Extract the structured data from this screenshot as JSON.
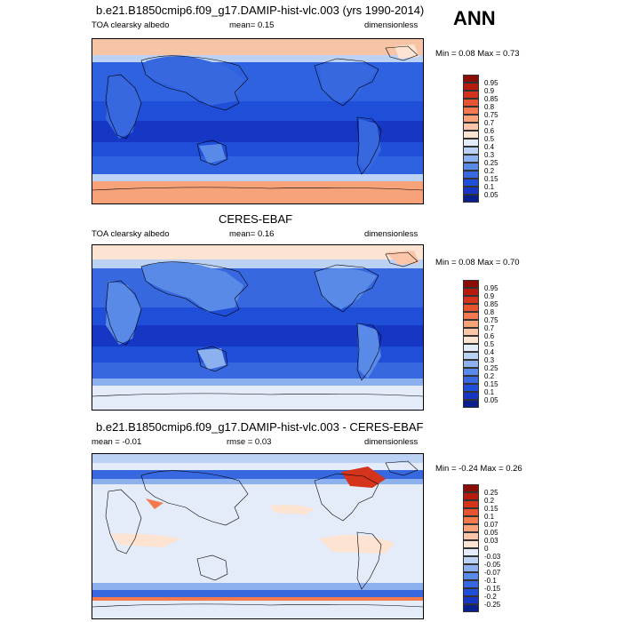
{
  "header": {
    "ann_label": "ANN"
  },
  "panels": [
    {
      "title": "b.e21.B1850cmip6.f09_g17.DAMIP-hist-vlc.003 (yrs 1990-2014)",
      "variable": "TOA clearsky albedo",
      "stat1": "mean=   0.15",
      "stat2": "",
      "units": "dimensionless",
      "minmax": "Min =   0.08 Max =   0.73",
      "colorbar_labels": [
        "0.95",
        "0.9",
        "0.85",
        "0.8",
        "0.75",
        "0.7",
        "0.6",
        "0.5",
        "0.4",
        "0.3",
        "0.25",
        "0.2",
        "0.15",
        "0.1",
        "0.05"
      ],
      "colorbar_colors": [
        "#8b0d06",
        "#b51c0e",
        "#d4341c",
        "#e65530",
        "#f47a4e",
        "#f8a27a",
        "#fac5a8",
        "#fde3d2",
        "#e4ecfa",
        "#bcd2f5",
        "#8db1ef",
        "#5a8ae8",
        "#3768e0",
        "#1f4fd9",
        "#1537c4",
        "#0a1f8a"
      ]
    },
    {
      "title": "CERES-EBAF",
      "variable": "TOA clearsky albedo",
      "stat1": "mean=   0.16",
      "stat2": "",
      "units": "dimensionless",
      "minmax": "Min =   0.08 Max =   0.70",
      "colorbar_labels": [
        "0.95",
        "0.9",
        "0.85",
        "0.8",
        "0.75",
        "0.7",
        "0.6",
        "0.5",
        "0.4",
        "0.3",
        "0.25",
        "0.2",
        "0.15",
        "0.1",
        "0.05"
      ],
      "colorbar_colors": [
        "#8b0d06",
        "#b51c0e",
        "#d4341c",
        "#e65530",
        "#f47a4e",
        "#f8a27a",
        "#fac5a8",
        "#fde3d2",
        "#e4ecfa",
        "#bcd2f5",
        "#8db1ef",
        "#5a8ae8",
        "#3768e0",
        "#1f4fd9",
        "#1537c4",
        "#0a1f8a"
      ]
    },
    {
      "title": "b.e21.B1850cmip6.f09_g17.DAMIP-hist-vlc.003 - CERES-EBAF",
      "variable": "",
      "stat1": "mean =  -0.01",
      "stat2": "rmse =   0.03",
      "units": "dimensionless",
      "minmax": "Min =  -0.24 Max =   0.26",
      "colorbar_labels": [
        "0.25",
        "0.2",
        "0.15",
        "0.1",
        "0.07",
        "0.05",
        "0.03",
        "0",
        "-0.03",
        "-0.05",
        "-0.07",
        "-0.1",
        "-0.15",
        "-0.2",
        "-0.25"
      ],
      "colorbar_colors": [
        "#8b0d06",
        "#b51c0e",
        "#d4341c",
        "#e65530",
        "#f47a4e",
        "#f8a27a",
        "#fac5a8",
        "#fde3d2",
        "#e4ecfa",
        "#bcd2f5",
        "#8db1ef",
        "#5a8ae8",
        "#3768e0",
        "#1f4fd9",
        "#1537c4",
        "#0a1f8a"
      ]
    }
  ]
}
